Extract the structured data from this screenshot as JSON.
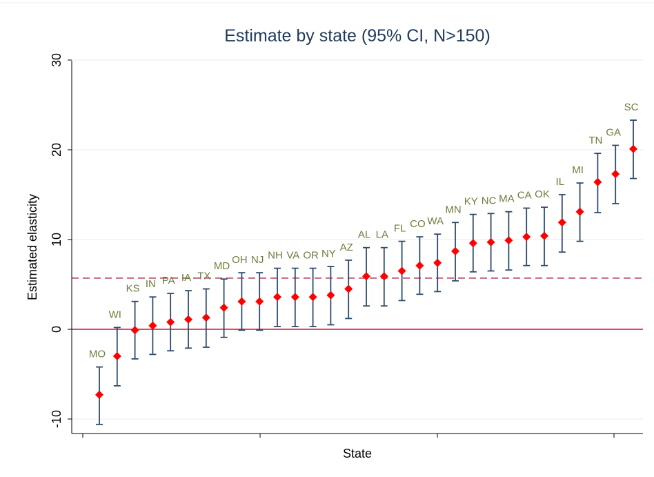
{
  "chart_data": {
    "type": "scatter",
    "title": "Estimate by state (95% CI, N>150)",
    "xlabel": "State",
    "ylabel": "Estimated elasticity",
    "ylim": [
      -11,
      30
    ],
    "yticks": [
      -10,
      0,
      10,
      20,
      30
    ],
    "grid": "horizontal",
    "reference_lines": [
      {
        "y": 0,
        "style": "solid",
        "color": "#c8143c"
      },
      {
        "y": 5.7,
        "style": "dashed",
        "color": "#b03050"
      }
    ],
    "colors": {
      "point": "#ff0000",
      "ci": "#2e4a6b",
      "label": "#6b7d3a",
      "grid": "#e6eef2",
      "title": "#1f3a5a"
    },
    "points": [
      {
        "label": "MO",
        "y": -7.3,
        "low": -10.6,
        "high": -4.2
      },
      {
        "label": "WI",
        "y": -3.0,
        "low": -6.3,
        "high": 0.2
      },
      {
        "label": "KS",
        "y": -0.1,
        "low": -3.3,
        "high": 3.1
      },
      {
        "label": "IN",
        "y": 0.4,
        "low": -2.8,
        "high": 3.6
      },
      {
        "label": "PA",
        "y": 0.8,
        "low": -2.4,
        "high": 4.0
      },
      {
        "label": "IA",
        "y": 1.1,
        "low": -2.1,
        "high": 4.3
      },
      {
        "label": "TX",
        "y": 1.3,
        "low": -2.0,
        "high": 4.5
      },
      {
        "label": "MD",
        "y": 2.4,
        "low": -0.9,
        "high": 5.6
      },
      {
        "label": "OH",
        "y": 3.1,
        "low": -0.1,
        "high": 6.3
      },
      {
        "label": "NJ",
        "y": 3.1,
        "low": -0.1,
        "high": 6.3
      },
      {
        "label": "NH",
        "y": 3.6,
        "low": 0.3,
        "high": 6.8
      },
      {
        "label": "VA",
        "y": 3.6,
        "low": 0.3,
        "high": 6.8
      },
      {
        "label": "OR",
        "y": 3.6,
        "low": 0.3,
        "high": 6.8
      },
      {
        "label": "NY",
        "y": 3.8,
        "low": 0.5,
        "high": 7.0
      },
      {
        "label": "AZ",
        "y": 4.5,
        "low": 1.2,
        "high": 7.7
      },
      {
        "label": "AL",
        "y": 5.9,
        "low": 2.6,
        "high": 9.1
      },
      {
        "label": "LA",
        "y": 5.9,
        "low": 2.6,
        "high": 9.1
      },
      {
        "label": "FL",
        "y": 6.5,
        "low": 3.2,
        "high": 9.8
      },
      {
        "label": "CO",
        "y": 7.1,
        "low": 3.9,
        "high": 10.3
      },
      {
        "label": "WA",
        "y": 7.4,
        "low": 4.2,
        "high": 10.6
      },
      {
        "label": "MN",
        "y": 8.7,
        "low": 5.4,
        "high": 11.9
      },
      {
        "label": "KY",
        "y": 9.6,
        "low": 6.4,
        "high": 12.8
      },
      {
        "label": "NC",
        "y": 9.7,
        "low": 6.5,
        "high": 12.9
      },
      {
        "label": "MA",
        "y": 9.9,
        "low": 6.6,
        "high": 13.1
      },
      {
        "label": "CA",
        "y": 10.3,
        "low": 7.1,
        "high": 13.5
      },
      {
        "label": "OK",
        "y": 10.4,
        "low": 7.1,
        "high": 13.6
      },
      {
        "label": "IL",
        "y": 11.9,
        "low": 8.6,
        "high": 15.0
      },
      {
        "label": "MI",
        "y": 13.1,
        "low": 9.8,
        "high": 16.3
      },
      {
        "label": "TN",
        "y": 16.4,
        "low": 13.0,
        "high": 19.6
      },
      {
        "label": "GA",
        "y": 17.3,
        "low": 14.0,
        "high": 20.5
      },
      {
        "label": "SC",
        "y": 20.1,
        "low": 16.8,
        "high": 23.3
      }
    ]
  }
}
